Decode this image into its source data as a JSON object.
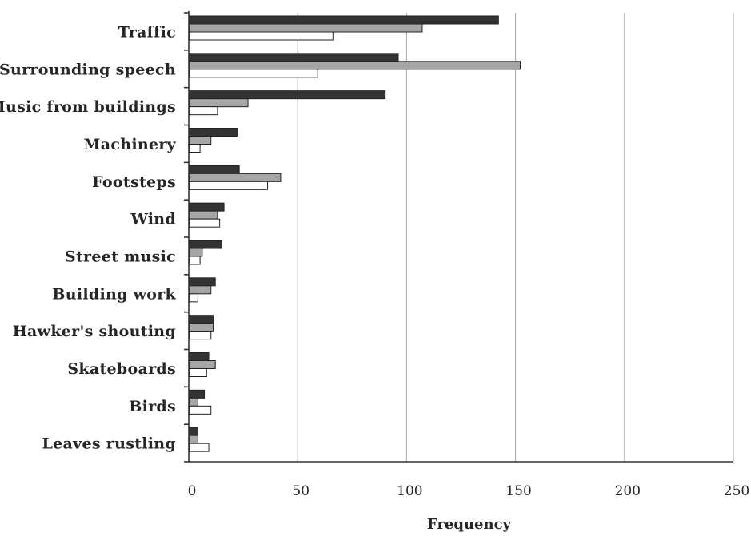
{
  "chart_data": {
    "type": "bar",
    "orientation": "horizontal",
    "categories": [
      "Traffic",
      "Surrounding speech",
      "Music from buildings",
      "Machinery",
      "Footsteps",
      "Wind",
      "Street music",
      "Building work",
      "Hawker's shouting",
      "Skateboards",
      "Birds",
      "Leaves rustling"
    ],
    "series": [
      {
        "values": [
          142,
          96,
          90,
          22,
          23,
          16,
          15,
          12,
          11,
          9,
          7,
          4
        ],
        "color": "#333333"
      },
      {
        "values": [
          107,
          152,
          27,
          10,
          42,
          13,
          6,
          10,
          11,
          12,
          4,
          4
        ],
        "color": "#a6a6a6"
      },
      {
        "values": [
          66,
          59,
          13,
          5,
          36,
          14,
          5,
          4,
          10,
          8,
          10,
          9
        ],
        "color": "#ffffff"
      }
    ],
    "xlabel": "Frequency",
    "ylabel": "",
    "xlim": [
      0,
      250
    ],
    "xticks": [
      "0",
      "50",
      "100",
      "150",
      "200",
      "250"
    ],
    "grid": "vertical"
  }
}
